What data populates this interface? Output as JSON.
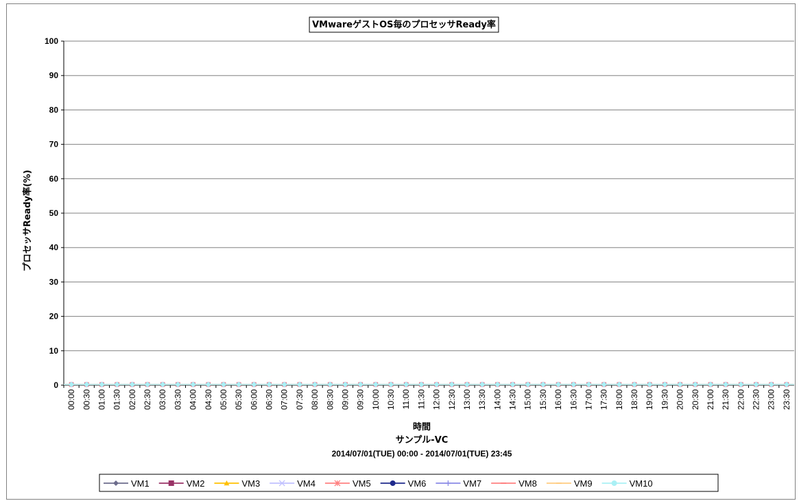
{
  "chart_data": {
    "type": "line",
    "title": "VMwareゲストOS毎のプロセッサReady率",
    "xlabel": "時間",
    "subtitle1": "サンプル-VC",
    "subtitle2": "2014/07/01(TUE) 00:00 - 2014/07/01(TUE) 23:45",
    "ylabel": "プロセッサReady率(%)",
    "ylim": [
      0,
      100
    ],
    "yticks": [
      0,
      10,
      20,
      30,
      40,
      50,
      60,
      70,
      80,
      90,
      100
    ],
    "grid": true,
    "legend_position": "bottom",
    "categories": [
      "00:00",
      "00:30",
      "01:00",
      "01:30",
      "02:00",
      "02:30",
      "03:00",
      "03:30",
      "04:00",
      "04:30",
      "05:00",
      "05:30",
      "06:00",
      "06:30",
      "07:00",
      "07:30",
      "08:00",
      "08:30",
      "09:00",
      "09:30",
      "10:00",
      "10:30",
      "11:00",
      "11:30",
      "12:00",
      "12:30",
      "13:00",
      "13:30",
      "14:00",
      "14:30",
      "15:00",
      "15:30",
      "16:00",
      "16:30",
      "17:00",
      "17:30",
      "18:00",
      "18:30",
      "19:00",
      "19:30",
      "20:00",
      "20:30",
      "21:00",
      "21:30",
      "22:00",
      "22:30",
      "23:00",
      "23:30"
    ],
    "series": [
      {
        "name": "VM1",
        "color": "#6c6c8c",
        "marker": "diamond",
        "value": 0
      },
      {
        "name": "VM2",
        "color": "#993366",
        "marker": "square",
        "value": 0
      },
      {
        "name": "VM3",
        "color": "#ffc000",
        "marker": "triangle",
        "value": 0
      },
      {
        "name": "VM4",
        "color": "#c0c0ff",
        "marker": "x",
        "value": 0
      },
      {
        "name": "VM5",
        "color": "#ff8080",
        "marker": "star",
        "value": 0
      },
      {
        "name": "VM6",
        "color": "#1f2a8c",
        "marker": "circle",
        "value": 0
      },
      {
        "name": "VM7",
        "color": "#8a8ae6",
        "marker": "plus",
        "value": 0
      },
      {
        "name": "VM8",
        "color": "#ff8080",
        "marker": "dash",
        "value": 0
      },
      {
        "name": "VM9",
        "color": "#ffcc80",
        "marker": "dash",
        "value": 0
      },
      {
        "name": "VM10",
        "color": "#aaf0f5",
        "marker": "circle",
        "value": 0
      }
    ]
  }
}
